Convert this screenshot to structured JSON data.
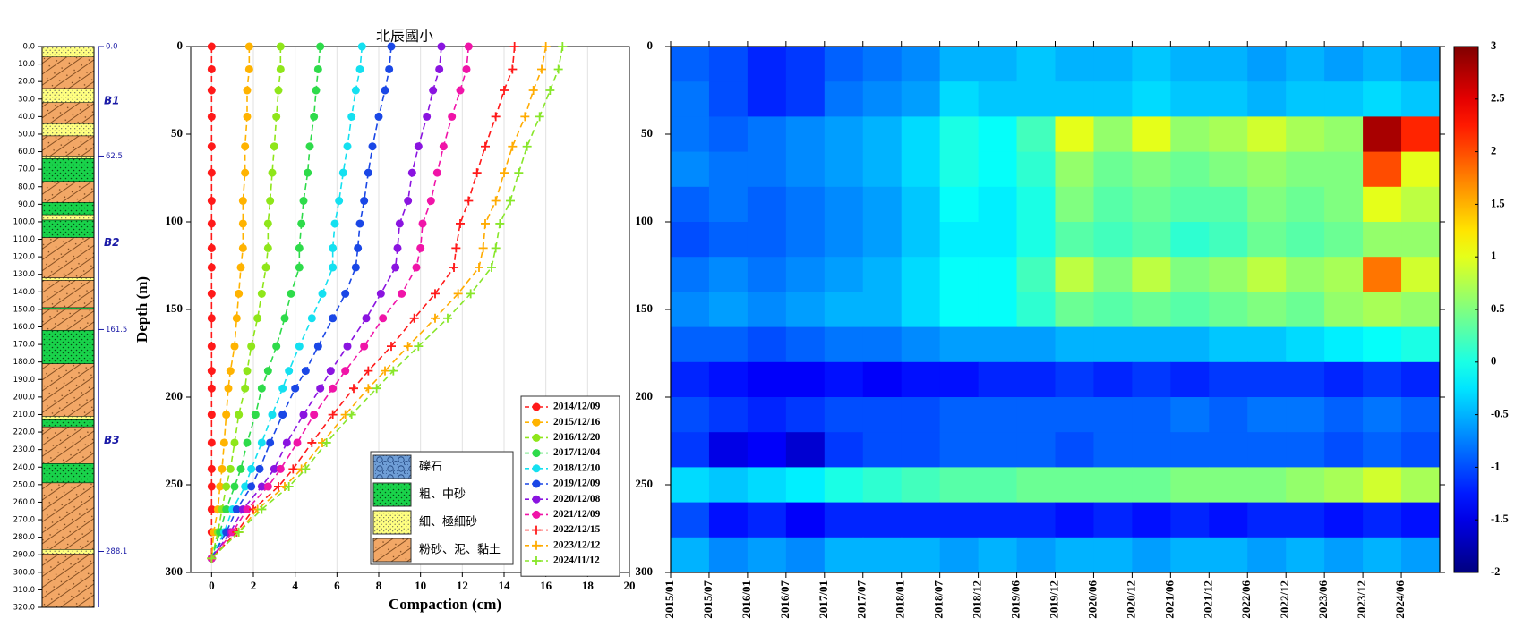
{
  "chart_data": [
    {
      "type": "strat_column",
      "ylim": [
        0,
        320
      ],
      "color": "#1a1aa6",
      "yticks": [
        {
          "value": 0,
          "label": "0.0"
        },
        {
          "value": 10,
          "label": "10.0"
        },
        {
          "value": 20,
          "label": "20.0"
        },
        {
          "value": 30,
          "label": "30.0"
        },
        {
          "value": 40,
          "label": "40.0"
        },
        {
          "value": 50,
          "label": "50.0"
        },
        {
          "value": 60,
          "label": "60.0"
        },
        {
          "value": 70,
          "label": "70.0"
        },
        {
          "value": 80,
          "label": "80.0"
        },
        {
          "value": 90,
          "label": "90.0"
        },
        {
          "value": 100,
          "label": "100.0"
        },
        {
          "value": 110,
          "label": "110.0"
        },
        {
          "value": 120,
          "label": "120.0"
        },
        {
          "value": 130,
          "label": "130.0"
        },
        {
          "value": 140,
          "label": "140.0"
        },
        {
          "value": 150,
          "label": "150.0"
        },
        {
          "value": 160,
          "label": "160.0"
        },
        {
          "value": 170,
          "label": "170.0"
        },
        {
          "value": 180,
          "label": "180.0"
        },
        {
          "value": 190,
          "label": "190.0"
        },
        {
          "value": 200,
          "label": "200.0"
        },
        {
          "value": 210,
          "label": "210.0"
        },
        {
          "value": 220,
          "label": "220.0"
        },
        {
          "value": 230,
          "label": "230.0"
        },
        {
          "value": 240,
          "label": "240.0"
        },
        {
          "value": 250,
          "label": "250.0"
        },
        {
          "value": 260,
          "label": "260.0"
        },
        {
          "value": 270,
          "label": "270.0"
        },
        {
          "value": 280,
          "label": "280.0"
        },
        {
          "value": 290,
          "label": "290.0"
        },
        {
          "value": 300,
          "label": "300.0"
        },
        {
          "value": 310,
          "label": "310.0"
        },
        {
          "value": 320,
          "label": "320.0"
        }
      ],
      "layers": [
        {
          "top": 0,
          "bottom": 6,
          "lith": "fine_sand"
        },
        {
          "top": 6,
          "bottom": 24,
          "lith": "silt_clay"
        },
        {
          "top": 24,
          "bottom": 32,
          "lith": "fine_sand"
        },
        {
          "top": 32,
          "bottom": 44,
          "lith": "silt_clay"
        },
        {
          "top": 44,
          "bottom": 51,
          "lith": "fine_sand"
        },
        {
          "top": 51,
          "bottom": 62.5,
          "lith": "silt_clay"
        },
        {
          "top": 62.5,
          "bottom": 64,
          "lith": "fine_sand"
        },
        {
          "top": 64,
          "bottom": 77,
          "lith": "medium_sand"
        },
        {
          "top": 77,
          "bottom": 89,
          "lith": "silt_clay"
        },
        {
          "top": 89,
          "bottom": 96,
          "lith": "medium_sand"
        },
        {
          "top": 96,
          "bottom": 99,
          "lith": "fine_sand"
        },
        {
          "top": 99,
          "bottom": 109,
          "lith": "medium_sand"
        },
        {
          "top": 109,
          "bottom": 132,
          "lith": "silt_clay"
        },
        {
          "top": 132,
          "bottom": 133.5,
          "lith": "fine_sand"
        },
        {
          "top": 133.5,
          "bottom": 149,
          "lith": "silt_clay"
        },
        {
          "top": 149,
          "bottom": 150,
          "lith": "medium_sand"
        },
        {
          "top": 150,
          "bottom": 162,
          "lith": "silt_clay"
        },
        {
          "top": 162,
          "bottom": 181,
          "lith": "medium_sand"
        },
        {
          "top": 181,
          "bottom": 211,
          "lith": "silt_clay"
        },
        {
          "top": 211,
          "bottom": 213,
          "lith": "fine_sand"
        },
        {
          "top": 213,
          "bottom": 217,
          "lith": "medium_sand"
        },
        {
          "top": 217,
          "bottom": 238,
          "lith": "silt_clay"
        },
        {
          "top": 238,
          "bottom": 249,
          "lith": "medium_sand"
        },
        {
          "top": 249,
          "bottom": 287,
          "lith": "silt_clay"
        },
        {
          "top": 287,
          "bottom": 289.5,
          "lith": "fine_sand"
        },
        {
          "top": 289.5,
          "bottom": 320,
          "lith": "silt_clay"
        }
      ],
      "boundaries": [
        {
          "value": 0,
          "label": "0.0"
        },
        {
          "value": 62.5,
          "label": "62.5"
        },
        {
          "value": 161.5,
          "label": "161.5"
        },
        {
          "value": 288.1,
          "label": "288.1"
        }
      ],
      "units": [
        "B1",
        "B2",
        "B3"
      ]
    },
    {
      "type": "depth_profile",
      "title": "北辰國小",
      "xlabel": "Compaction (cm)",
      "ylabel": "Depth (m)",
      "xlim": [
        -1,
        20
      ],
      "xticks": [
        0,
        2,
        4,
        6,
        8,
        10,
        12,
        14,
        16,
        18,
        20
      ],
      "ylim": [
        0,
        300
      ],
      "y_reversed": true,
      "yticks": [
        0,
        50,
        100,
        150,
        200,
        250,
        300
      ],
      "grid": true,
      "legend": "lower right",
      "depths": [
        0,
        13,
        25,
        40,
        57,
        72,
        88,
        101,
        115,
        126,
        141,
        155,
        171,
        185,
        195,
        210,
        226,
        241,
        251,
        264,
        277,
        292
      ],
      "series": [
        {
          "name": "2014/12/09",
          "color": "#ff1a1a",
          "marker": "circle",
          "values": [
            0,
            0,
            0,
            0,
            0,
            0,
            0,
            0,
            0,
            0,
            0,
            0,
            0,
            0,
            0,
            0,
            0,
            0,
            0,
            0,
            0,
            0
          ]
        },
        {
          "name": "2015/12/16",
          "color": "#ffb300",
          "marker": "circle",
          "values": [
            1.8,
            1.8,
            1.7,
            1.7,
            1.6,
            1.6,
            1.5,
            1.5,
            1.5,
            1.4,
            1.3,
            1.2,
            1.1,
            0.9,
            0.8,
            0.7,
            0.6,
            0.5,
            0.4,
            0.3,
            0.1,
            0
          ]
        },
        {
          "name": "2016/12/20",
          "color": "#8fe61a",
          "marker": "circle",
          "values": [
            3.3,
            3.3,
            3.2,
            3.1,
            3.0,
            2.9,
            2.8,
            2.7,
            2.7,
            2.6,
            2.4,
            2.2,
            1.9,
            1.7,
            1.6,
            1.3,
            1.1,
            0.9,
            0.7,
            0.5,
            0.3,
            0
          ]
        },
        {
          "name": "2017/12/04",
          "color": "#2edb4a",
          "marker": "circle",
          "values": [
            5.2,
            5.1,
            5.0,
            4.9,
            4.7,
            4.6,
            4.4,
            4.3,
            4.2,
            4.2,
            3.8,
            3.5,
            3.1,
            2.7,
            2.4,
            2.1,
            1.7,
            1.4,
            1.1,
            0.7,
            0.4,
            0
          ]
        },
        {
          "name": "2018/12/10",
          "color": "#14e0f0",
          "marker": "circle",
          "values": [
            7.2,
            7.1,
            6.9,
            6.7,
            6.5,
            6.3,
            6.1,
            5.9,
            5.8,
            5.8,
            5.3,
            4.8,
            4.2,
            3.7,
            3.4,
            2.9,
            2.4,
            1.9,
            1.6,
            1.0,
            0.6,
            0
          ]
        },
        {
          "name": "2019/12/09",
          "color": "#1a47e6",
          "marker": "circle",
          "values": [
            8.6,
            8.5,
            8.3,
            8.0,
            7.7,
            7.5,
            7.3,
            7.1,
            7.0,
            6.9,
            6.4,
            5.8,
            5.1,
            4.5,
            4.0,
            3.4,
            2.8,
            2.3,
            1.9,
            1.2,
            0.7,
            0
          ]
        },
        {
          "name": "2020/12/08",
          "color": "#8a14e0",
          "marker": "circle",
          "values": [
            11.0,
            10.9,
            10.6,
            10.3,
            9.9,
            9.6,
            9.4,
            9.0,
            8.9,
            8.8,
            8.1,
            7.4,
            6.5,
            5.7,
            5.2,
            4.4,
            3.6,
            3.0,
            2.4,
            1.5,
            0.9,
            0
          ]
        },
        {
          "name": "2021/12/09",
          "color": "#f014a8",
          "marker": "circle",
          "values": [
            12.3,
            12.2,
            11.9,
            11.5,
            11.1,
            10.8,
            10.5,
            10.1,
            10.0,
            9.8,
            9.1,
            8.2,
            7.3,
            6.4,
            5.8,
            4.9,
            4.1,
            3.3,
            2.7,
            1.7,
            1.0,
            0
          ]
        },
        {
          "name": "2022/12/15",
          "color": "#ff1a1a",
          "marker": "plus",
          "values": [
            14.5,
            14.4,
            14.0,
            13.6,
            13.1,
            12.7,
            12.3,
            11.9,
            11.7,
            11.6,
            10.7,
            9.7,
            8.6,
            7.5,
            6.8,
            5.8,
            4.8,
            3.9,
            3.2,
            2.0,
            1.2,
            0
          ]
        },
        {
          "name": "2023/12/12",
          "color": "#ffab00",
          "marker": "plus",
          "values": [
            16.0,
            15.8,
            15.4,
            15.0,
            14.4,
            14.0,
            13.6,
            13.1,
            13.0,
            12.8,
            11.8,
            10.7,
            9.4,
            8.3,
            7.5,
            6.4,
            5.3,
            4.3,
            3.5,
            2.2,
            1.3,
            0
          ]
        },
        {
          "name": "2024/11/12",
          "color": "#88e62a",
          "marker": "plus",
          "values": [
            16.8,
            16.6,
            16.2,
            15.7,
            15.1,
            14.7,
            14.3,
            13.8,
            13.6,
            13.4,
            12.4,
            11.3,
            9.9,
            8.7,
            7.9,
            6.7,
            5.5,
            4.5,
            3.7,
            2.4,
            1.3,
            0
          ]
        }
      ],
      "lith_legend": [
        {
          "label": "礫石",
          "lith": "gravel"
        },
        {
          "label": "粗、中砂",
          "lith": "medium_sand"
        },
        {
          "label": "細、極細砂",
          "lith": "fine_sand"
        },
        {
          "label": "粉砂、泥、黏土",
          "lith": "silt_clay"
        }
      ]
    },
    {
      "type": "heatmap",
      "colormap": "jet",
      "clim": [
        -2,
        3
      ],
      "cticks": [
        -2,
        -1.5,
        -1,
        -0.5,
        0,
        0.5,
        1,
        1.5,
        2,
        2.5,
        3
      ],
      "categories": [
        "2015/01",
        "2015/07",
        "2016/01",
        "2016/07",
        "2017/01",
        "2017/07",
        "2018/01",
        "2018/07",
        "2018/12",
        "2019/06",
        "2019/12",
        "2020/06",
        "2020/12",
        "2021/06",
        "2021/12",
        "2022/06",
        "2022/12",
        "2023/06",
        "2023/12",
        "2024/06"
      ],
      "ylim": [
        0,
        300
      ],
      "y_reversed": true,
      "yticks": [
        0,
        50,
        100,
        150,
        200,
        250,
        300
      ],
      "y_edges": [
        0,
        20,
        40,
        60,
        80,
        100,
        120,
        140,
        160,
        180,
        200,
        220,
        240,
        260,
        280,
        300
      ],
      "values": [
        [
          -0.9,
          -1.0,
          -1.2,
          -1.1,
          -0.9,
          -0.8,
          -0.7,
          -0.5,
          -0.5,
          -0.4,
          -0.5,
          -0.5,
          -0.4,
          -0.5,
          -0.5,
          -0.6,
          -0.5,
          -0.6,
          -0.5,
          -0.6
        ],
        [
          -0.8,
          -1.0,
          -1.2,
          -1.1,
          -0.8,
          -0.7,
          -0.6,
          -0.3,
          -0.4,
          -0.4,
          -0.4,
          -0.4,
          -0.3,
          -0.4,
          -0.4,
          -0.5,
          -0.4,
          -0.4,
          -0.3,
          -0.4
        ],
        [
          -0.8,
          -0.9,
          -0.8,
          -0.7,
          -0.6,
          -0.5,
          -0.3,
          0.0,
          -0.1,
          0.2,
          1.0,
          0.6,
          1.0,
          0.6,
          0.7,
          0.9,
          0.7,
          0.6,
          2.8,
          2.2
        ],
        [
          -0.7,
          -0.8,
          -0.8,
          -0.7,
          -0.6,
          -0.5,
          -0.3,
          0.0,
          -0.1,
          0.1,
          0.6,
          0.4,
          0.5,
          0.4,
          0.5,
          0.6,
          0.5,
          0.5,
          2.0,
          1.0
        ],
        [
          -0.9,
          -0.8,
          -0.9,
          -0.8,
          -0.7,
          -0.6,
          -0.4,
          -0.1,
          -0.2,
          0.0,
          0.5,
          0.3,
          0.4,
          0.3,
          0.3,
          0.5,
          0.4,
          0.5,
          1.0,
          0.8
        ],
        [
          -1.0,
          -0.9,
          -0.9,
          -0.8,
          -0.7,
          -0.6,
          -0.4,
          -0.2,
          -0.2,
          0.0,
          0.3,
          0.2,
          0.3,
          0.1,
          0.2,
          0.4,
          0.3,
          0.4,
          0.6,
          0.6
        ],
        [
          -0.8,
          -0.7,
          -0.8,
          -0.7,
          -0.6,
          -0.5,
          -0.3,
          -0.1,
          -0.1,
          0.2,
          0.8,
          0.5,
          0.8,
          0.5,
          0.6,
          0.8,
          0.6,
          0.7,
          1.8,
          0.9
        ],
        [
          -0.7,
          -0.6,
          -0.7,
          -0.6,
          -0.5,
          -0.5,
          -0.3,
          -0.1,
          -0.1,
          0.1,
          0.4,
          0.3,
          0.4,
          0.3,
          0.4,
          0.5,
          0.4,
          0.6,
          0.7,
          0.6
        ],
        [
          -0.9,
          -0.9,
          -1.0,
          -0.9,
          -0.8,
          -0.8,
          -0.7,
          -0.6,
          -0.6,
          -0.6,
          -0.5,
          -0.5,
          -0.5,
          -0.5,
          -0.4,
          -0.4,
          -0.3,
          -0.2,
          -0.1,
          0.0
        ],
        [
          -1.2,
          -1.3,
          -1.4,
          -1.4,
          -1.3,
          -1.4,
          -1.3,
          -1.3,
          -1.2,
          -1.2,
          -1.1,
          -1.2,
          -1.1,
          -1.2,
          -1.1,
          -1.1,
          -1.1,
          -1.2,
          -1.1,
          -1.2
        ],
        [
          -1.0,
          -1.1,
          -1.2,
          -1.1,
          -1.0,
          -1.0,
          -1.0,
          -0.9,
          -0.9,
          -0.9,
          -0.9,
          -0.9,
          -0.9,
          -0.8,
          -0.9,
          -0.8,
          -0.8,
          -0.9,
          -0.8,
          -0.9
        ],
        [
          -1.1,
          -1.5,
          -1.4,
          -1.6,
          -1.1,
          -1.0,
          -1.0,
          -0.9,
          -0.9,
          -0.9,
          -1.0,
          -0.9,
          -0.9,
          -0.9,
          -0.9,
          -0.9,
          -0.9,
          -1.0,
          -0.9,
          -1.0
        ],
        [
          -0.3,
          -0.4,
          -0.3,
          -0.2,
          0.0,
          0.1,
          0.2,
          0.3,
          0.3,
          0.4,
          0.4,
          0.4,
          0.4,
          0.5,
          0.5,
          0.5,
          0.6,
          0.7,
          0.9,
          0.7
        ],
        [
          -1.0,
          -1.3,
          -1.2,
          -1.4,
          -1.2,
          -1.2,
          -1.2,
          -1.2,
          -1.2,
          -1.2,
          -1.3,
          -1.2,
          -1.3,
          -1.2,
          -1.3,
          -1.2,
          -1.2,
          -1.3,
          -1.2,
          -1.3
        ],
        [
          -0.5,
          -0.7,
          -0.6,
          -0.7,
          -0.5,
          -0.5,
          -0.5,
          -0.6,
          -0.5,
          -0.6,
          -0.5,
          -0.5,
          -0.6,
          -0.5,
          -0.5,
          -0.6,
          -0.5,
          -0.6,
          -0.5,
          -0.6
        ]
      ]
    }
  ]
}
